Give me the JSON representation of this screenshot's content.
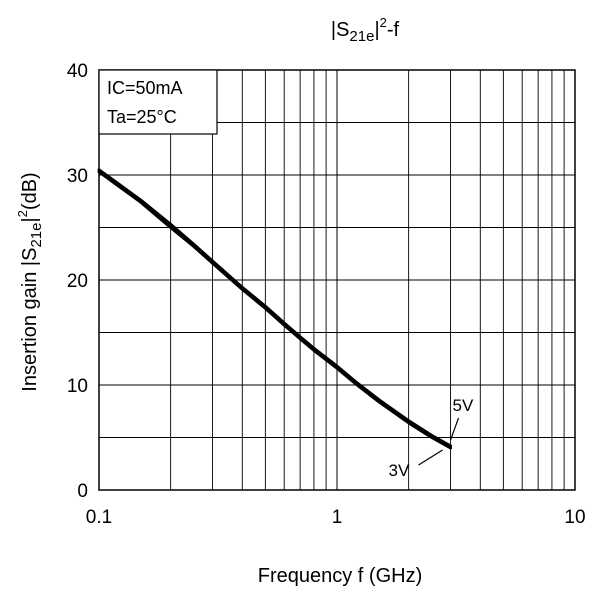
{
  "chart_data": {
    "type": "line",
    "title": {
      "base": "|S",
      "sub": "21e",
      "post1": "|",
      "sup": "2",
      "post2": "-f"
    },
    "xlabel": "Frequency f (GHz)",
    "ylabel": {
      "base": "Insertion gain |S",
      "sub": "21e",
      "post1": "|",
      "sup": "2",
      "post2": "(dB)"
    },
    "x_scale": "log",
    "xlim": [
      0.1,
      10
    ],
    "ylim": [
      0,
      40
    ],
    "x_ticks": [
      {
        "value": 0.1,
        "label": "0.1"
      },
      {
        "value": 1,
        "label": "1"
      },
      {
        "value": 10,
        "label": "10"
      }
    ],
    "y_ticks": [
      {
        "value": 0,
        "label": "0"
      },
      {
        "value": 10,
        "label": "10"
      },
      {
        "value": 20,
        "label": "20"
      },
      {
        "value": 30,
        "label": "30"
      },
      {
        "value": 40,
        "label": "40"
      }
    ],
    "grid": true,
    "conditions": [
      "IC=50mA",
      "Ta=25°C"
    ],
    "series": [
      {
        "name": "5V",
        "x": [
          0.1,
          0.12,
          0.15,
          0.2,
          0.25,
          0.3,
          0.4,
          0.5,
          0.6,
          0.7,
          0.8,
          1.0,
          1.2,
          1.5,
          2.0,
          2.5,
          3.0
        ],
        "y": [
          30.5,
          29.2,
          27.6,
          25.3,
          23.4,
          21.8,
          19.3,
          17.5,
          15.9,
          14.6,
          13.5,
          11.8,
          10.3,
          8.6,
          6.6,
          5.2,
          4.2
        ]
      },
      {
        "name": "3V",
        "x": [
          0.1,
          0.12,
          0.15,
          0.2,
          0.25,
          0.3,
          0.4,
          0.5,
          0.6,
          0.7,
          0.8,
          1.0,
          1.2,
          1.5,
          2.0,
          2.5,
          3.0
        ],
        "y": [
          30.3,
          29.0,
          27.4,
          25.0,
          23.2,
          21.6,
          19.1,
          17.3,
          15.7,
          14.4,
          13.3,
          11.6,
          10.1,
          8.4,
          6.4,
          5.0,
          4.0
        ]
      }
    ],
    "annotations": [
      {
        "text": "5V",
        "series": "5V"
      },
      {
        "text": "3V",
        "series": "3V"
      }
    ]
  }
}
